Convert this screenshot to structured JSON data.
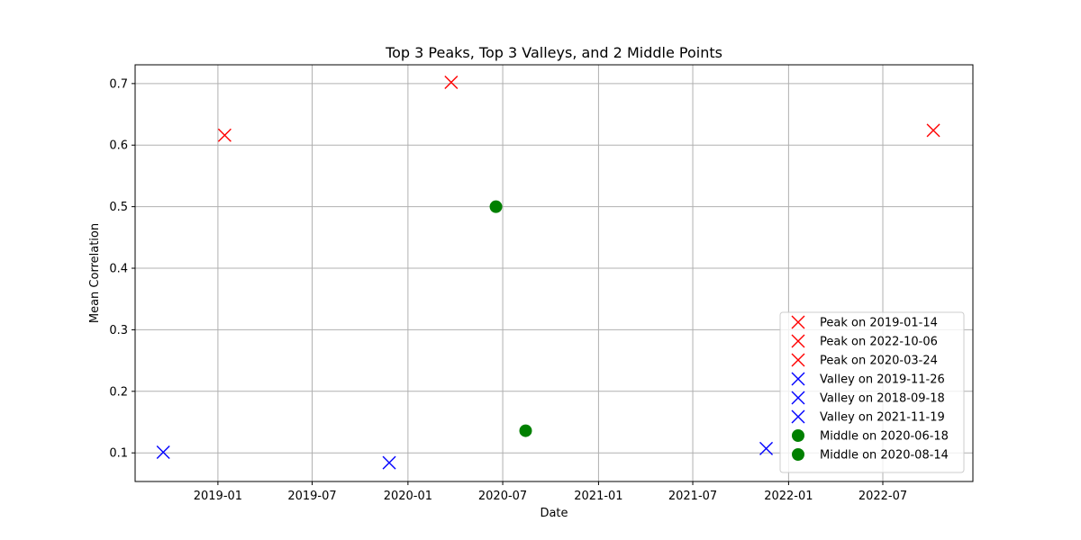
{
  "chart_data": {
    "type": "scatter",
    "title": "Top 3 Peaks, Top 3 Valleys, and 2 Middle Points",
    "xlabel": "Date",
    "ylabel": "Mean Correlation",
    "xlim": [
      "2018-07-26",
      "2022-12-21"
    ],
    "ylim": [
      0.0535,
      0.7305
    ],
    "x_ticks": [
      "2019-01",
      "2019-07",
      "2020-01",
      "2020-07",
      "2021-01",
      "2021-07",
      "2022-01",
      "2022-07"
    ],
    "y_ticks": [
      "0.1",
      "0.2",
      "0.3",
      "0.4",
      "0.5",
      "0.6",
      "0.7"
    ],
    "grid": true,
    "legend_position": "lower-right",
    "series": [
      {
        "name": "Peak on 2019-01-14",
        "marker": "x",
        "color": "#ff0000",
        "points": [
          {
            "x": "2019-01-14",
            "y": 0.616
          }
        ]
      },
      {
        "name": "Peak on 2022-10-06",
        "marker": "x",
        "color": "#ff0000",
        "points": [
          {
            "x": "2022-10-06",
            "y": 0.624
          }
        ]
      },
      {
        "name": "Peak on 2020-03-24",
        "marker": "x",
        "color": "#ff0000",
        "points": [
          {
            "x": "2020-03-24",
            "y": 0.702
          }
        ]
      },
      {
        "name": "Valley on 2019-11-26",
        "marker": "x",
        "color": "#0000ff",
        "points": [
          {
            "x": "2019-11-26",
            "y": 0.084
          }
        ]
      },
      {
        "name": "Valley on 2018-09-18",
        "marker": "x",
        "color": "#0000ff",
        "points": [
          {
            "x": "2018-09-18",
            "y": 0.101
          }
        ]
      },
      {
        "name": "Valley on 2021-11-19",
        "marker": "x",
        "color": "#0000ff",
        "points": [
          {
            "x": "2021-11-19",
            "y": 0.107
          }
        ]
      },
      {
        "name": "Middle on 2020-06-18",
        "marker": "o",
        "color": "#008000",
        "points": [
          {
            "x": "2020-06-18",
            "y": 0.5
          }
        ]
      },
      {
        "name": "Middle on 2020-08-14",
        "marker": "o",
        "color": "#008000",
        "points": [
          {
            "x": "2020-08-14",
            "y": 0.136
          }
        ]
      }
    ]
  }
}
